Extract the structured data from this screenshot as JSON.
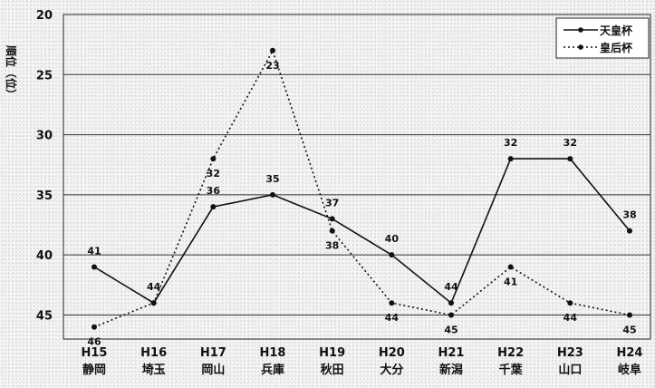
{
  "chart_data": {
    "type": "line",
    "ylabel": "順位（位）",
    "ylim": [
      20,
      47
    ],
    "y_inverted": true,
    "yticks": [
      20,
      25,
      30,
      35,
      40,
      45
    ],
    "grid": "horizontal",
    "legend_position": "top-right",
    "categories": [
      {
        "code": "H15",
        "name": "静岡"
      },
      {
        "code": "H16",
        "name": "埼玉"
      },
      {
        "code": "H17",
        "name": "岡山"
      },
      {
        "code": "H18",
        "name": "兵庫"
      },
      {
        "code": "H19",
        "name": "秋田"
      },
      {
        "code": "H20",
        "name": "大分"
      },
      {
        "code": "H21",
        "name": "新潟"
      },
      {
        "code": "H22",
        "name": "千葉"
      },
      {
        "code": "H23",
        "name": "山口"
      },
      {
        "code": "H24",
        "name": "岐阜"
      }
    ],
    "series": [
      {
        "name": "天皇杯",
        "style": "solid",
        "values": [
          41,
          44,
          36,
          35,
          37,
          40,
          44,
          32,
          32,
          38
        ],
        "labels": [
          "41",
          "44",
          "36",
          "35",
          "37",
          "40",
          "44",
          "32",
          "32",
          "38"
        ]
      },
      {
        "name": "皇后杯",
        "style": "dotted",
        "values": [
          46,
          44,
          32,
          23,
          38,
          44,
          45,
          41,
          44,
          45
        ],
        "labels": [
          "46",
          "",
          "32",
          "23",
          "38",
          "44",
          "45",
          "41",
          "44",
          "45"
        ]
      }
    ]
  },
  "colors": {
    "line": "#111111",
    "grid": "#333333",
    "frame": "#222222"
  }
}
